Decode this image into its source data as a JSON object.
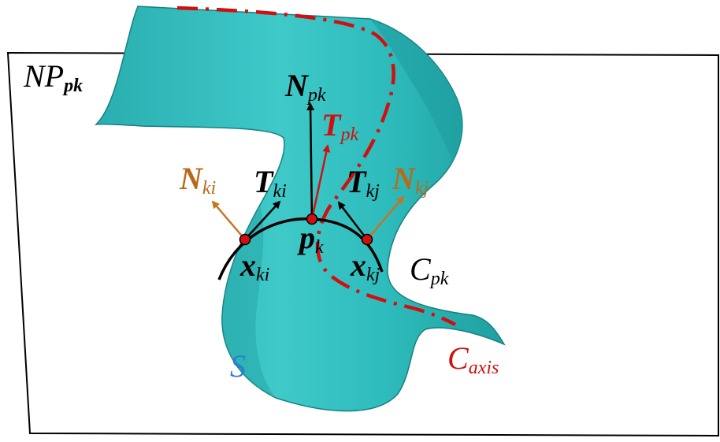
{
  "labels": {
    "plane": {
      "main": "NP",
      "sub": "pk"
    },
    "n_pk": {
      "main": "N",
      "sub": "pk"
    },
    "t_pk": {
      "main": "T",
      "sub": "pk"
    },
    "n_ki": {
      "main": "N",
      "sub": "ki"
    },
    "t_ki": {
      "main": "T",
      "sub": "ki"
    },
    "t_kj": {
      "main": "T",
      "sub": "kj"
    },
    "n_kj": {
      "main": "N",
      "sub": "kj"
    },
    "p_k": {
      "main": "p",
      "sub": "k"
    },
    "x_ki": {
      "main": "x",
      "sub": "ki"
    },
    "x_kj": {
      "main": "x",
      "sub": "kj"
    },
    "c_pk": {
      "main": "C",
      "sub": "pk"
    },
    "surface": {
      "main": "S"
    },
    "c_axis": {
      "main": "C",
      "sub": "axis"
    }
  },
  "colors": {
    "surface": "#2fbcbc",
    "surface_dark": "#1e9a9c",
    "axis_curve": "#d01010",
    "normal_arrow": "#c8741e",
    "normal_label": "#b86a1a",
    "black": "#000000",
    "surface_label": "#2a7fd0",
    "point_fill": "#d01010"
  }
}
